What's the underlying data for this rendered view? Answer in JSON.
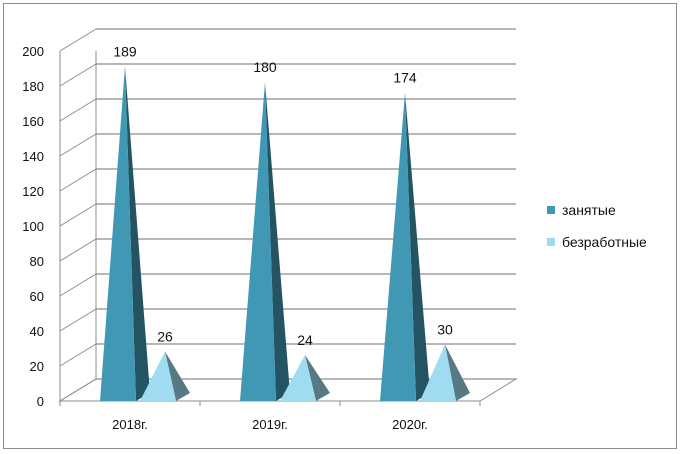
{
  "chart_data": {
    "type": "bar",
    "style": "3d-pyramid",
    "categories": [
      "2018г.",
      "2019г.",
      "2020г."
    ],
    "series": [
      {
        "name": "занятые",
        "values": [
          189,
          180,
          174
        ],
        "color": "#4198b4"
      },
      {
        "name": "безработные",
        "values": [
          26,
          24,
          30
        ],
        "color": "#9fdcf0"
      }
    ],
    "yticks": [
      "0",
      "20",
      "40",
      "60",
      "80",
      "100",
      "120",
      "140",
      "160",
      "180",
      "200"
    ],
    "ylim": [
      0,
      200
    ],
    "grid": true,
    "legend_position": "right"
  }
}
